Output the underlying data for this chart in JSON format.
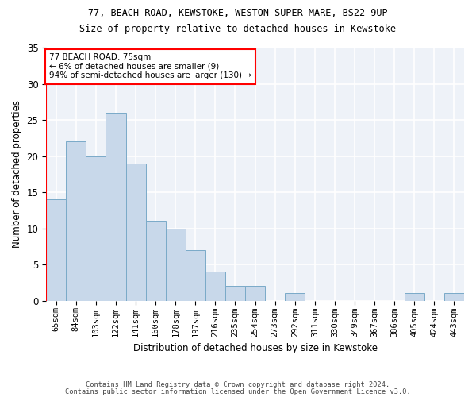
{
  "title1": "77, BEACH ROAD, KEWSTOKE, WESTON-SUPER-MARE, BS22 9UP",
  "title2": "Size of property relative to detached houses in Kewstoke",
  "xlabel": "Distribution of detached houses by size in Kewstoke",
  "ylabel": "Number of detached properties",
  "categories": [
    "65sqm",
    "84sqm",
    "103sqm",
    "122sqm",
    "141sqm",
    "160sqm",
    "178sqm",
    "197sqm",
    "216sqm",
    "235sqm",
    "254sqm",
    "273sqm",
    "292sqm",
    "311sqm",
    "330sqm",
    "349sqm",
    "367sqm",
    "386sqm",
    "405sqm",
    "424sqm",
    "443sqm"
  ],
  "values": [
    14,
    22,
    20,
    26,
    19,
    11,
    10,
    7,
    4,
    2,
    2,
    0,
    1,
    0,
    0,
    0,
    0,
    0,
    1,
    0,
    1
  ],
  "bar_color": "#c8d8ea",
  "bar_edge_color": "#7aaac8",
  "vline_x": -0.5,
  "annotation_text": "77 BEACH ROAD: 75sqm\n← 6% of detached houses are smaller (9)\n94% of semi-detached houses are larger (130) →",
  "annotation_box_color": "white",
  "annotation_box_edge_color": "red",
  "vline_color": "red",
  "bg_color": "#eef2f8",
  "grid_color": "white",
  "ylim": [
    0,
    35
  ],
  "yticks": [
    0,
    5,
    10,
    15,
    20,
    25,
    30,
    35
  ],
  "footer1": "Contains HM Land Registry data © Crown copyright and database right 2024.",
  "footer2": "Contains public sector information licensed under the Open Government Licence v3.0."
}
